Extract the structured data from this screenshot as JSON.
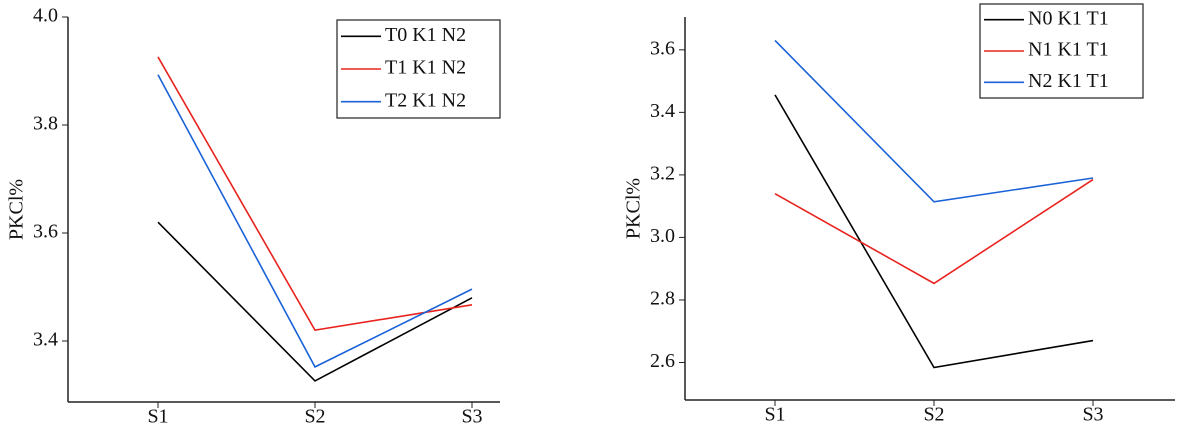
{
  "chart_data": [
    {
      "type": "line",
      "y_label": "PKCl%",
      "categories": [
        "S1",
        "S2",
        "S3"
      ],
      "series": [
        {
          "name": "T0 K1 N2",
          "color": "#000000",
          "values": [
            3.62,
            3.326,
            3.48
          ]
        },
        {
          "name": "T1 K1 N2",
          "color": "#e8231e",
          "values": [
            3.926,
            3.42,
            3.467
          ]
        },
        {
          "name": "T2 K1 N2",
          "color": "#1a62d8",
          "values": [
            3.893,
            3.352,
            3.496
          ]
        }
      ],
      "ylim": [
        3.287,
        4.0
      ],
      "yticks": [
        3.4,
        3.6,
        3.8,
        {
          "value": 4,
          "label": "4.0"
        }
      ],
      "legend": "upper right"
    },
    {
      "type": "line",
      "y_label": "PKCl%",
      "categories": [
        "S1",
        "S2",
        "S3"
      ],
      "series": [
        {
          "name": "N0 K1 T1",
          "color": "#000000",
          "values": [
            3.456,
            2.584,
            2.67
          ]
        },
        {
          "name": "N1 K1 T1",
          "color": "#e8231e",
          "values": [
            3.14,
            2.853,
            3.185
          ]
        },
        {
          "name": "N2 K1 T1",
          "color": "#1a62d8",
          "values": [
            3.63,
            3.114,
            3.19
          ]
        }
      ],
      "ylim": [
        2.48,
        3.705
      ],
      "yticks": [
        2.6,
        2.8,
        {
          "value": 3,
          "label": "3.0"
        },
        3.2,
        3.4,
        3.6
      ],
      "legend": "upper right"
    }
  ]
}
